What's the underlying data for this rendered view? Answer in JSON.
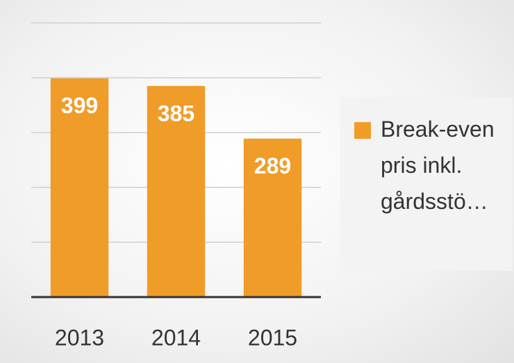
{
  "chart_data": {
    "type": "bar",
    "categories": [
      "2013",
      "2014",
      "2015"
    ],
    "series": [
      {
        "name": "Break-even pris inkl. gårdsstö…",
        "color": "#f09c28",
        "values": [
          399,
          385,
          289
        ]
      }
    ],
    "ylim": [
      0,
      500
    ],
    "yticks": [
      0,
      100,
      200,
      300,
      400,
      500
    ],
    "grid": true,
    "legend": "right"
  }
}
